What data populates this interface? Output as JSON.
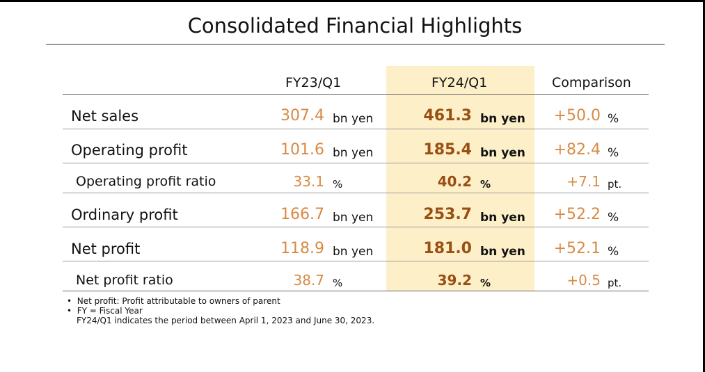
{
  "title": "Consolidated Financial Highlights",
  "columns": {
    "prev": "FY23/Q1",
    "curr": "FY24/Q1",
    "comparison": "Comparison"
  },
  "colors": {
    "accent_orange": "#d88a44",
    "accent_dark": "#9a4f12",
    "highlight": "#fdf0c9"
  },
  "rows": [
    {
      "label": "Net sales",
      "prev": "307.4",
      "prev_unit": "bn yen",
      "curr": "461.3",
      "curr_unit": "bn yen",
      "cmp": "+50.0",
      "cmp_unit": "%"
    },
    {
      "label": "Operating profit",
      "prev": "101.6",
      "prev_unit": "bn yen",
      "curr": "185.4",
      "curr_unit": "bn yen",
      "cmp": "+82.4",
      "cmp_unit": "%"
    },
    {
      "label": "Operating profit ratio",
      "prev": "33.1",
      "prev_unit": "%",
      "curr": "40.2",
      "curr_unit": "%",
      "cmp": "+7.1",
      "cmp_unit": "pt."
    },
    {
      "label": "Ordinary profit",
      "prev": "166.7",
      "prev_unit": "bn yen",
      "curr": "253.7",
      "curr_unit": "bn yen",
      "cmp": "+52.2",
      "cmp_unit": "%"
    },
    {
      "label": "Net profit",
      "prev": "118.9",
      "prev_unit": "bn yen",
      "curr": "181.0",
      "curr_unit": "bn yen",
      "cmp": "+52.1",
      "cmp_unit": "%"
    },
    {
      "label": "Net profit ratio",
      "prev": "38.7",
      "prev_unit": "%",
      "curr": "39.2",
      "curr_unit": "%",
      "cmp": "+0.5",
      "cmp_unit": "pt."
    }
  ],
  "notes": [
    "Net profit: Profit attributable to owners of parent",
    "FY = Fiscal Year",
    "FY24/Q1 indicates the period between April 1, 2023 and June 30, 2023."
  ],
  "note_bullet": "•"
}
